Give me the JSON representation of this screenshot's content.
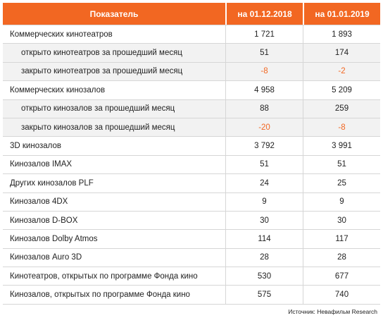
{
  "header": {
    "indicator": "Показатель",
    "date1": "на 01.12.2018",
    "date2": "на 01.01.2019"
  },
  "rows": [
    {
      "label": "Коммерческих кинотеатров",
      "v1": "1 721",
      "v2": "1 893"
    },
    {
      "label": "открыто кинотеатров за прошедший месяц",
      "v1": "51",
      "v2": "174"
    },
    {
      "label": "закрыто кинотеатров за прошедший месяц",
      "v1": "-8",
      "v2": "-2"
    },
    {
      "label": "Коммерческих кинозалов",
      "v1": "4 958",
      "v2": "5 209"
    },
    {
      "label": "открыто кинозалов за прошедший месяц",
      "v1": "88",
      "v2": "259"
    },
    {
      "label": "закрыто кинозалов за прошедший месяц",
      "v1": "-20",
      "v2": "-8"
    },
    {
      "label": "3D кинозалов",
      "v1": "3 792",
      "v2": "3 991"
    },
    {
      "label": "Кинозалов IMAX",
      "v1": "51",
      "v2": "51"
    },
    {
      "label": "Других кинозалов PLF",
      "v1": "24",
      "v2": "25"
    },
    {
      "label": "Кинозалов 4DX",
      "v1": "9",
      "v2": "9"
    },
    {
      "label": "Кинозалов D-BOX",
      "v1": "30",
      "v2": "30"
    },
    {
      "label": "Кинозалов Dolby Atmos",
      "v1": "114",
      "v2": "117"
    },
    {
      "label": "Кинозалов Auro 3D",
      "v1": "28",
      "v2": "28"
    },
    {
      "label": "Кинотеатров, открытых по программе Фонда кино",
      "v1": "530",
      "v2": "677"
    },
    {
      "label": "Кинозалов, открытых по программе Фонда кино",
      "v1": "575",
      "v2": "740"
    }
  ],
  "source": "Источник: Невафильм Research",
  "colors": {
    "header_bg": "#f26722",
    "negative_value": "#f26722",
    "subrow_bg": "#f2f2f2"
  }
}
